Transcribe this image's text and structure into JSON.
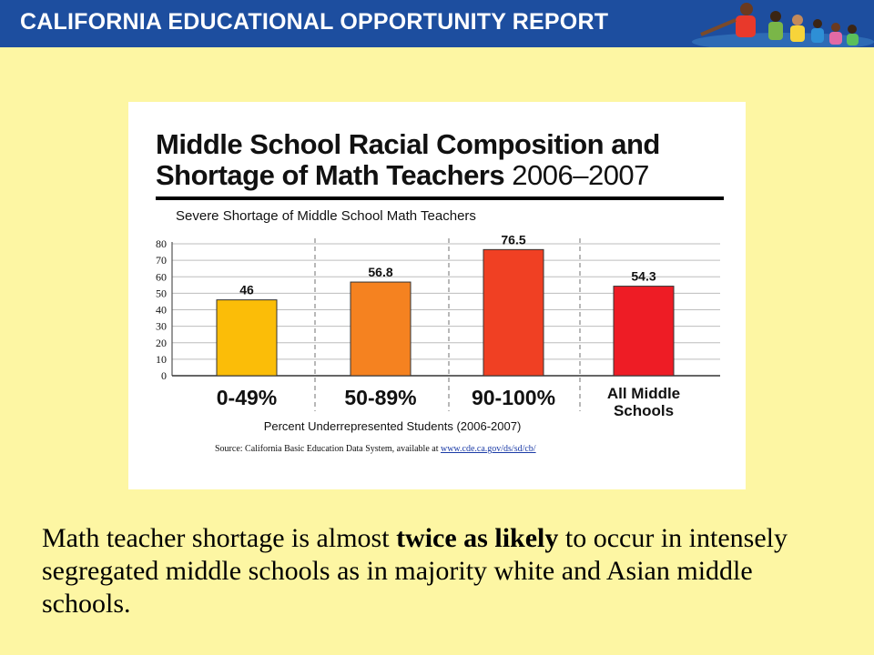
{
  "banner": {
    "title": "CALIFORNIA EDUCATIONAL OPPORTUNITY REPORT"
  },
  "colors": {
    "banner": "#1d4e9f",
    "background": "#fdf6a3",
    "bar_0_49": "#fbbd08",
    "bar_50_89": "#f58220",
    "bar_90_100": "#f04023",
    "bar_all": "#ee1c25"
  },
  "chart_data": {
    "type": "bar",
    "title_line1": "Middle School Racial Composition and",
    "title_line2_bold": "Shortage of Math Teachers",
    "title_line2_year": "2006–2007",
    "subtitle": "Severe Shortage of Middle School Math Teachers",
    "categories": [
      "0-49%",
      "50-89%",
      "90-100%",
      "All Middle Schools"
    ],
    "values": [
      46,
      56.8,
      76.5,
      54.3
    ],
    "data_labels": [
      "46",
      "56.8",
      "76.5",
      "54.3"
    ],
    "category_label_lines": [
      [
        "0-49%"
      ],
      [
        "50-89%"
      ],
      [
        "90-100%"
      ],
      [
        "All Middle",
        "Schools"
      ]
    ],
    "xlabel": "Percent Underrepresented Students (2006-2007)",
    "ylabel": "",
    "ylim": [
      0,
      80
    ],
    "yticks": [
      0,
      10,
      20,
      30,
      40,
      50,
      60,
      70,
      80
    ],
    "grid": true,
    "source_prefix": "Source:  California Basic Education Data System, available at ",
    "source_link": "www.cde.ca.gov/ds/sd/cb/"
  },
  "caption": {
    "before": "Math teacher shortage is almost ",
    "bold": "twice as likely",
    "after": " to occur in intensely segregated middle schools as in majority white and Asian middle schools."
  }
}
